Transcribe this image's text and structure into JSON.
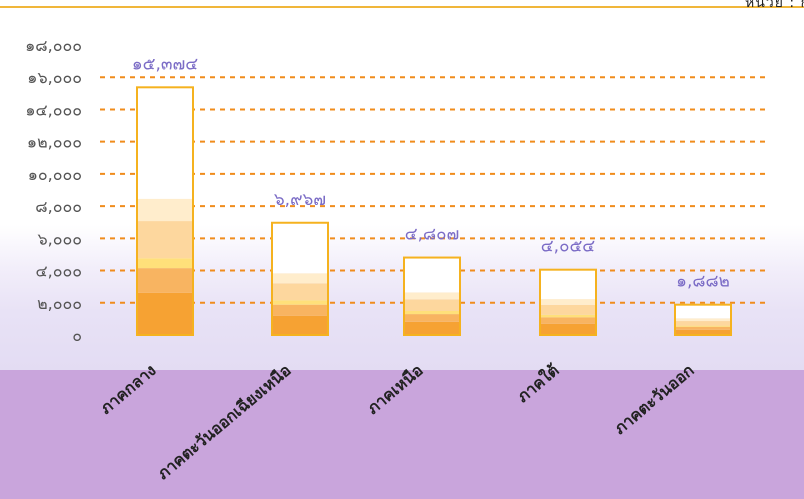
{
  "header": {
    "unit_text": "หน่วย : ก"
  },
  "chart_data": {
    "type": "bar",
    "title": "",
    "xlabel": "",
    "ylabel": "",
    "ylim": [
      0,
      18000
    ],
    "yticks": [
      0,
      2000,
      4000,
      6000,
      8000,
      10000,
      12000,
      14000,
      16000,
      18000
    ],
    "ytick_labels": [
      "๐",
      "๒,๐๐๐",
      "๔,๐๐๐",
      "๖,๐๐๐",
      "๘,๐๐๐",
      "๑๐,๐๐๐",
      "๑๒,๐๐๐",
      "๑๔,๐๐๐",
      "๑๖,๐๐๐",
      "๑๘,๐๐๐"
    ],
    "grid": true,
    "grid_style": "dashed",
    "categories": [
      "ภาคกลาง",
      "ภาคตะวันออกเฉียงเหนือ",
      "ภาคเหนือ",
      "ภาคใต้",
      "ภาคตะวันออก"
    ],
    "values": [
      15374,
      6967,
      4807,
      4054,
      1882
    ],
    "value_labels": [
      "๑๕,๓๗๔",
      "๖,๙๖๗",
      "๔,๘๐๗",
      "๔,๐๕๔",
      "๑,๘๘๒"
    ],
    "colors": {
      "bar_outline": "#f5b21f",
      "gridline": "#f08c1c",
      "axis_text": "#555555",
      "value_text": "#7b6cc6",
      "category_text": "#222222",
      "segment_fills": [
        "#f6a233",
        "#f8b461",
        "#ffe07a",
        "#fdd79e",
        "#ffedcc",
        "#ffffff"
      ]
    }
  }
}
